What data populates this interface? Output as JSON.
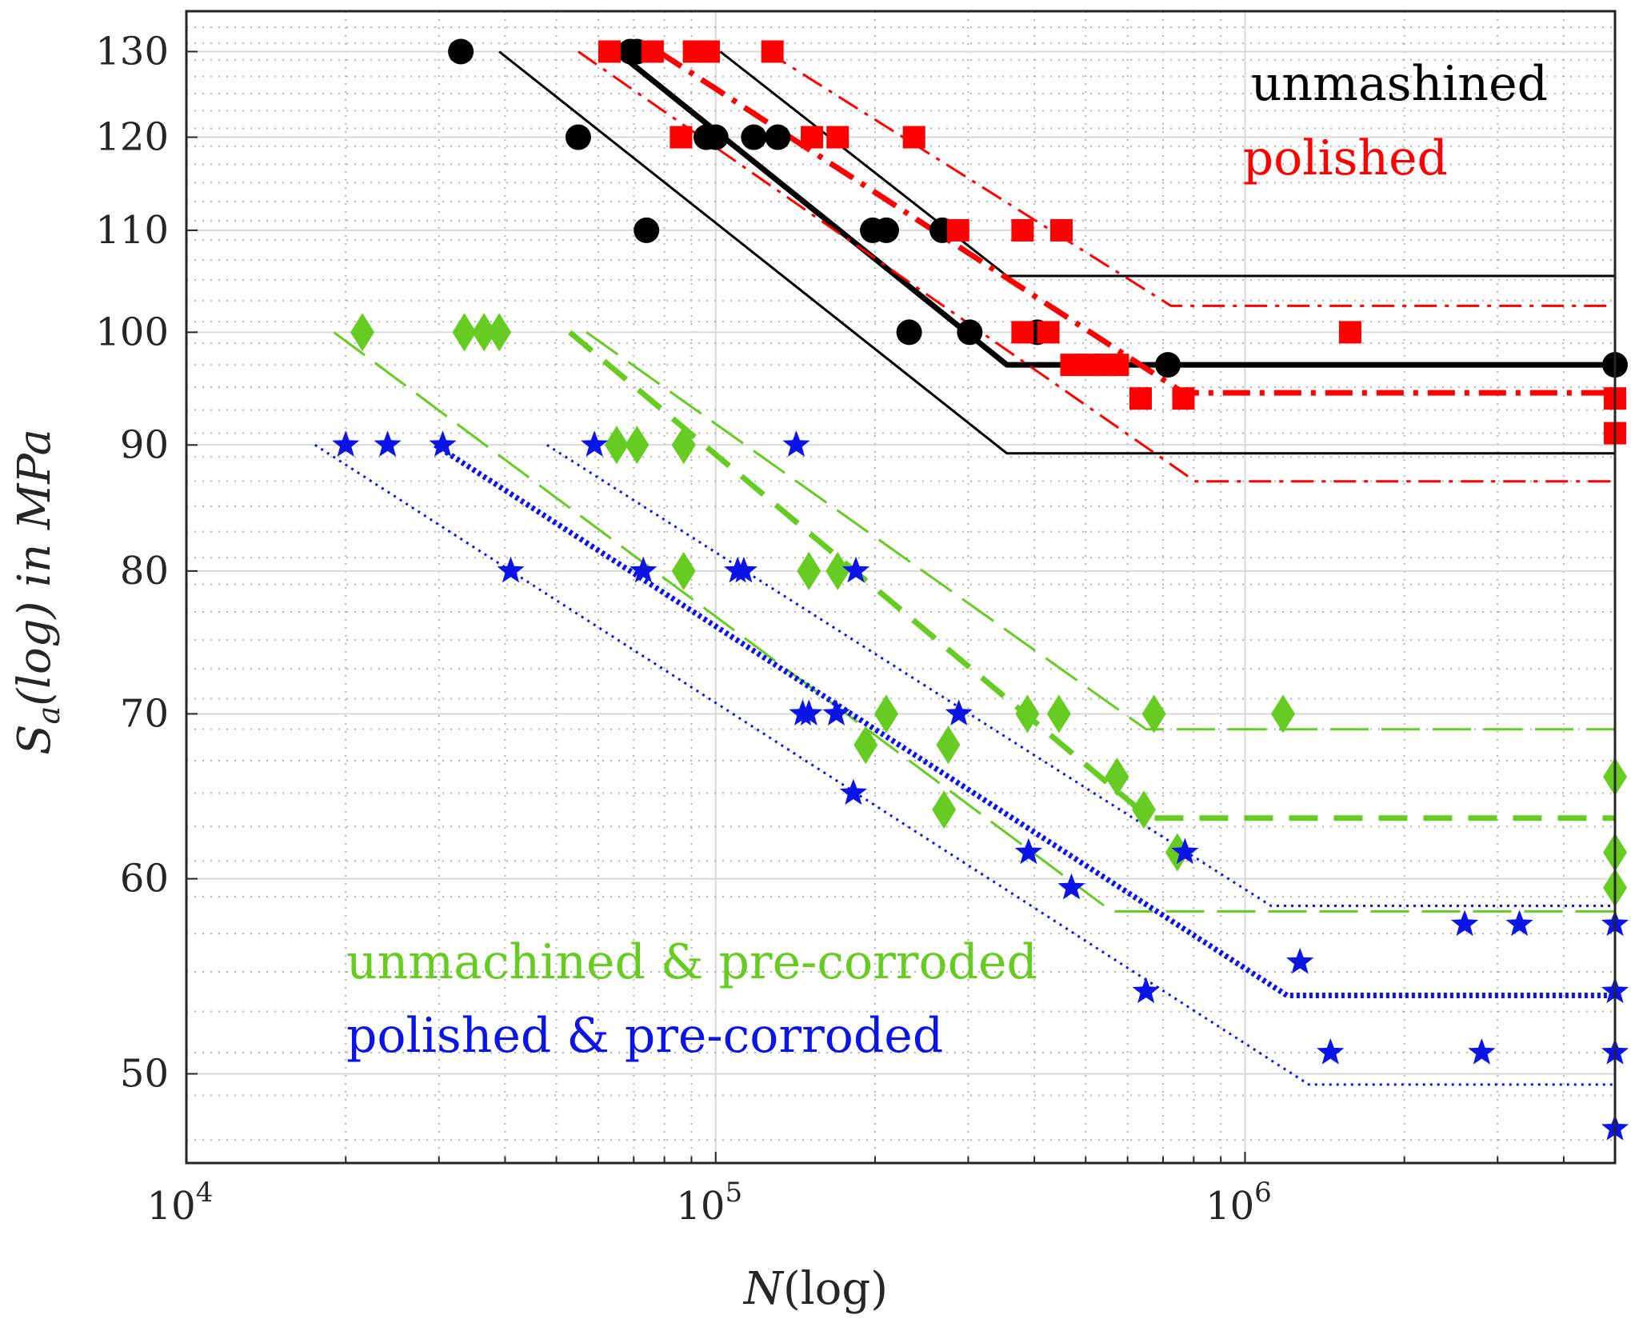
{
  "chart_data": {
    "type": "scatter",
    "title": "",
    "xlabel_base": "N",
    "xlabel_arg": "(log)",
    "ylabel_base": "S",
    "ylabel_sub": "a",
    "ylabel_rest": "(log) in MPa",
    "xscale": "log",
    "yscale": "log",
    "xlim": [
      10000,
      5000000
    ],
    "ylim": [
      46,
      135
    ],
    "xticks": [
      {
        "value": 10000,
        "base": "10",
        "exp": "4"
      },
      {
        "value": 100000,
        "base": "10",
        "exp": "5"
      },
      {
        "value": 1000000,
        "base": "10",
        "exp": "6"
      }
    ],
    "yticks": [
      {
        "value": 50,
        "label": "50"
      },
      {
        "value": 60,
        "label": "60"
      },
      {
        "value": 70,
        "label": "70"
      },
      {
        "value": 80,
        "label": "80"
      },
      {
        "value": 90,
        "label": "90"
      },
      {
        "value": 100,
        "label": "100"
      },
      {
        "value": 110,
        "label": "110"
      },
      {
        "value": 120,
        "label": "120"
      },
      {
        "value": 130,
        "label": "130"
      }
    ],
    "grid": true,
    "legend_top_right": [
      {
        "label": "unmashined",
        "color": "#000000"
      },
      {
        "label": "polished",
        "color": "#ff0000"
      }
    ],
    "legend_bottom_left": [
      {
        "label": "unmachined & pre-corroded",
        "color": "#66cc22"
      },
      {
        "label": "polished & pre-corroded",
        "color": "#0a14e6"
      }
    ],
    "series": [
      {
        "name": "unmashined",
        "color": "#000000",
        "marker": "circle",
        "points": [
          [
            33000,
            130
          ],
          [
            55000,
            120
          ],
          [
            69000,
            130
          ],
          [
            71000,
            130
          ],
          [
            74000,
            110
          ],
          [
            96000,
            120
          ],
          [
            100000,
            120
          ],
          [
            118000,
            120
          ],
          [
            131000,
            120
          ],
          [
            198000,
            110
          ],
          [
            210000,
            110
          ],
          [
            232000,
            100
          ],
          [
            268000,
            110
          ],
          [
            302000,
            100
          ],
          [
            405000,
            100
          ],
          [
            715000,
            97
          ],
          [
            5000000,
            97
          ]
        ],
        "lines": [
          {
            "style": "solid",
            "width": 7,
            "points": [
              [
                68000,
                129
              ],
              [
                355000,
                97
              ],
              [
                5000000,
                97
              ]
            ]
          },
          {
            "style": "solid",
            "width": 3,
            "points": [
              [
                39000,
                130
              ],
              [
                355000,
                89.3
              ],
              [
                5000000,
                89.3
              ]
            ]
          },
          {
            "style": "solid",
            "width": 3,
            "points": [
              [
                102000,
                130
              ],
              [
                355000,
                105.4
              ],
              [
                5000000,
                105.4
              ]
            ]
          }
        ]
      },
      {
        "name": "polished",
        "color": "#ff0000",
        "marker": "square",
        "points": [
          [
            63000,
            130
          ],
          [
            76000,
            130
          ],
          [
            91000,
            130
          ],
          [
            97000,
            130
          ],
          [
            128000,
            130
          ],
          [
            86000,
            120
          ],
          [
            152000,
            120
          ],
          [
            170000,
            120
          ],
          [
            237000,
            120
          ],
          [
            287000,
            110
          ],
          [
            380000,
            110
          ],
          [
            450000,
            110
          ],
          [
            380000,
            100
          ],
          [
            425000,
            100
          ],
          [
            470000,
            97
          ],
          [
            510000,
            97
          ],
          [
            545000,
            97
          ],
          [
            575000,
            97
          ],
          [
            635000,
            94
          ],
          [
            765000,
            94
          ],
          [
            1580000,
            100
          ],
          [
            5000000,
            94
          ],
          [
            5000000,
            91
          ]
        ],
        "lines": [
          {
            "style": "dashdot",
            "width": 7,
            "points": [
              [
                78000,
                130
              ],
              [
                765000,
                94.5
              ],
              [
                5000000,
                94.5
              ]
            ]
          },
          {
            "style": "dashdot",
            "width": 3,
            "points": [
              [
                55000,
                130
              ],
              [
                805000,
                87
              ],
              [
                5000000,
                87
              ]
            ]
          },
          {
            "style": "dashdot",
            "width": 3,
            "points": [
              [
                125000,
                130
              ],
              [
                725000,
                102.5
              ],
              [
                5000000,
                102.5
              ]
            ]
          }
        ]
      },
      {
        "name": "unmachined & pre-corroded",
        "color": "#66cc22",
        "marker": "diamond",
        "points": [
          [
            21500,
            100
          ],
          [
            33500,
            100
          ],
          [
            36500,
            100
          ],
          [
            39000,
            100
          ],
          [
            65000,
            90
          ],
          [
            71000,
            90
          ],
          [
            87000,
            90
          ],
          [
            87000,
            80
          ],
          [
            150000,
            80
          ],
          [
            170000,
            80
          ],
          [
            192000,
            68
          ],
          [
            210000,
            70
          ],
          [
            275000,
            68
          ],
          [
            270000,
            64
          ],
          [
            388000,
            70
          ],
          [
            445000,
            70
          ],
          [
            573000,
            66
          ],
          [
            644000,
            64
          ],
          [
            673000,
            70
          ],
          [
            745000,
            61.5
          ],
          [
            1180000,
            70
          ],
          [
            5000000,
            66
          ],
          [
            5000000,
            61.5
          ],
          [
            5000000,
            59.5
          ]
        ],
        "lines": [
          {
            "style": "dashed",
            "width": 7,
            "points": [
              [
                53000,
                100
              ],
              [
                660000,
                63.5
              ],
              [
                5000000,
                63.5
              ]
            ]
          },
          {
            "style": "dashed",
            "width": 3,
            "points": [
              [
                19000,
                100
              ],
              [
                560000,
                58.2
              ],
              [
                5000000,
                58.2
              ]
            ]
          },
          {
            "style": "dashed",
            "width": 3,
            "points": [
              [
                57000,
                100
              ],
              [
                650000,
                69
              ],
              [
                5000000,
                69
              ]
            ]
          }
        ]
      },
      {
        "name": "polished & pre-corroded",
        "color": "#0a14e6",
        "marker": "star",
        "points": [
          [
            20000,
            90
          ],
          [
            24000,
            90
          ],
          [
            30500,
            90
          ],
          [
            41000,
            80
          ],
          [
            59000,
            90
          ],
          [
            73000,
            80
          ],
          [
            110000,
            80
          ],
          [
            113000,
            80
          ],
          [
            142000,
            90
          ],
          [
            146000,
            70
          ],
          [
            150000,
            70
          ],
          [
            169000,
            70
          ],
          [
            184000,
            80
          ],
          [
            182000,
            65
          ],
          [
            288000,
            70
          ],
          [
            390000,
            61.5
          ],
          [
            470000,
            59.5
          ],
          [
            650000,
            54
          ],
          [
            770000,
            61.5
          ],
          [
            1270000,
            55.5
          ],
          [
            1450000,
            51
          ],
          [
            2600000,
            57.5
          ],
          [
            3300000,
            57.5
          ],
          [
            2800000,
            51
          ],
          [
            5000000,
            57.5
          ],
          [
            5000000,
            54
          ],
          [
            5000000,
            51
          ],
          [
            5000000,
            47.5
          ]
        ],
        "lines": [
          {
            "style": "dotted",
            "width": 7,
            "points": [
              [
                29500,
                90
              ],
              [
                1200000,
                53.8
              ],
              [
                5000000,
                53.8
              ]
            ]
          },
          {
            "style": "dotted",
            "width": 3,
            "points": [
              [
                17500,
                90
              ],
              [
                1320000,
                49.5
              ],
              [
                5000000,
                49.5
              ]
            ]
          },
          {
            "style": "dotted",
            "width": 3,
            "points": [
              [
                48000,
                90
              ],
              [
                1120000,
                58.5
              ],
              [
                5000000,
                58.5
              ]
            ]
          }
        ]
      }
    ]
  }
}
